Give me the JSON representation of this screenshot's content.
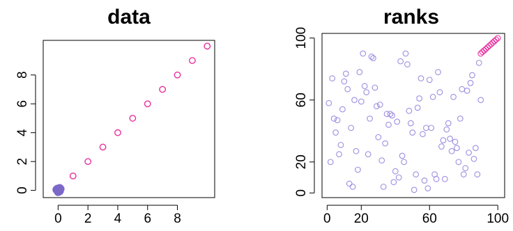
{
  "chart_data": [
    {
      "type": "scatter",
      "title": "data",
      "xlim": [
        -1,
        10.5
      ],
      "ylim": [
        -0.5,
        10.4
      ],
      "x_ticks": [
        0,
        2,
        4,
        6,
        8
      ],
      "y_ticks": [
        0,
        2,
        4,
        6,
        8
      ],
      "series": [
        {
          "color": "#7b68c8",
          "marker": "filled-circle",
          "x": [
            0,
            0.05,
            -0.05,
            0.1,
            -0.1,
            0.15,
            0,
            0.1
          ],
          "y": [
            0,
            0.05,
            0.1,
            -0.05,
            0.05,
            0.1,
            -0.1,
            0.15
          ]
        },
        {
          "color": "#e8309e",
          "marker": "open-circle",
          "x": [
            1,
            2,
            3,
            4,
            5,
            6,
            7,
            8,
            9,
            10
          ],
          "y": [
            1,
            2,
            3,
            4,
            5,
            6,
            7,
            8,
            9,
            10
          ]
        }
      ]
    },
    {
      "type": "scatter",
      "title": "ranks",
      "xlim": [
        -3,
        104
      ],
      "ylim": [
        -3,
        103
      ],
      "x_ticks": [
        0,
        20,
        60,
        100
      ],
      "y_ticks": [
        0,
        20,
        60,
        100
      ],
      "series": [
        {
          "color": "#9d8de0",
          "marker": "open-circle",
          "x": [
            1,
            2,
            3,
            4,
            5,
            6,
            7,
            8,
            9,
            10,
            11,
            12,
            13,
            14,
            15,
            16,
            17,
            18,
            19,
            20,
            21,
            22,
            23,
            24,
            25,
            26,
            27,
            28,
            29,
            30,
            31,
            32,
            33,
            34,
            35,
            36,
            37,
            38,
            39,
            40,
            41,
            42,
            43,
            44,
            45,
            46,
            47,
            48,
            49,
            50,
            51,
            52,
            53,
            54,
            55,
            56,
            57,
            58,
            59,
            60,
            61,
            62,
            63,
            64,
            65,
            66,
            67,
            68,
            69,
            70,
            71,
            72,
            73,
            74,
            75,
            76,
            77,
            78,
            79,
            80,
            81,
            82,
            83,
            84,
            85,
            86,
            87,
            88,
            89,
            90
          ],
          "y": [
            58,
            20,
            74,
            48,
            39,
            47,
            25,
            31,
            54,
            72,
            77,
            67,
            6,
            42,
            4,
            60,
            27,
            15,
            78,
            59,
            90,
            69,
            65,
            25,
            48,
            88,
            87,
            68,
            56,
            36,
            57,
            21,
            4,
            32,
            51,
            44,
            51,
            50,
            7,
            14,
            46,
            10,
            85,
            24,
            20,
            90,
            83,
            53,
            45,
            39,
            2,
            12,
            55,
            61,
            74,
            38,
            8,
            42,
            3,
            73,
            42,
            62,
            12,
            9,
            78,
            65,
            30,
            34,
            9,
            41,
            45,
            35,
            27,
            62,
            33,
            29,
            20,
            48,
            67,
            12,
            16,
            66,
            26,
            71,
            76,
            22,
            29,
            12,
            84,
            60
          ]
        },
        {
          "color": "#e8309e",
          "marker": "open-circle",
          "x": [
            90,
            91,
            92,
            93,
            94,
            95,
            96,
            97,
            98,
            99,
            100
          ],
          "y": [
            90,
            91,
            92,
            93,
            94,
            95,
            96,
            97,
            98,
            99,
            100
          ]
        }
      ]
    }
  ]
}
